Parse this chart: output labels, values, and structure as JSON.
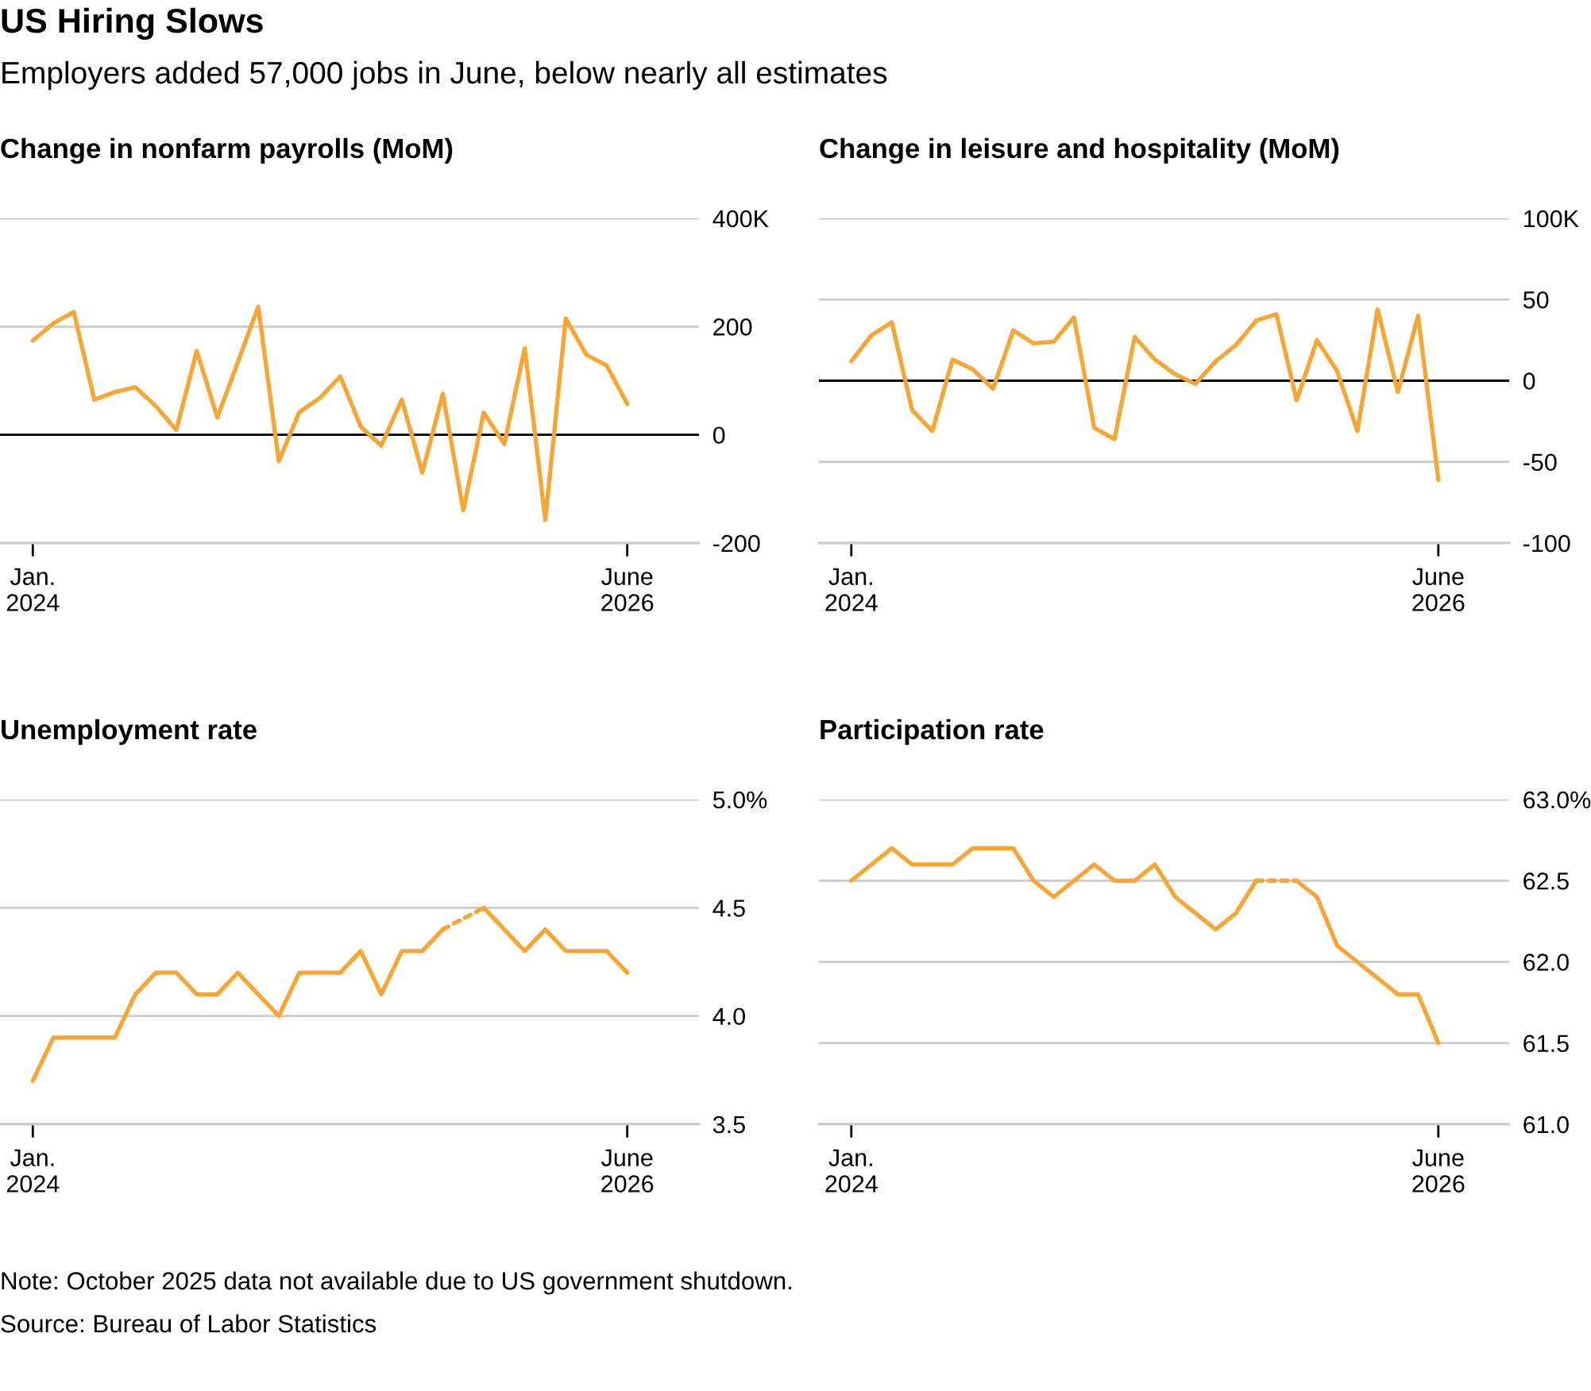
{
  "chart_data": [
    {
      "type": "line",
      "title": "Change in nonfarm payrolls (MoM)",
      "annotations": [
        "US Hiring Slows",
        "Employers added 57,000 jobs in June, below nearly all estimates",
        "Note: October 2025 data not available due to US government shutdown.",
        "Source: Bureau of Labor Statistics"
      ],
      "categories": [
        "Jan.\n2024",
        null,
        null,
        null,
        null,
        null,
        null,
        null,
        null,
        null,
        null,
        null,
        null,
        null,
        null,
        null,
        null,
        null,
        null,
        null,
        null,
        null,
        null,
        null,
        null,
        null,
        null,
        null,
        null,
        "June\n2026"
      ],
      "series": [
        {
          "color": "#f9a533",
          "values": [
            174,
            206,
            227,
            65,
            79,
            88,
            53,
            9,
            155,
            32,
            134,
            237,
            -49,
            42,
            68,
            108,
            15,
            -20,
            65,
            -70,
            76,
            -139,
            41,
            -17,
            160,
            -157,
            215,
            148,
            128,
            57
          ]
        }
      ],
      "ylim": [
        -200,
        400
      ],
      "yticks": [
        -200,
        0,
        200,
        {
          "value": 400,
          "label": "400K"
        }
      ],
      "grid": "y",
      "ref_lines": [
        {
          "axis": "y",
          "value": 0,
          "color": "#000000"
        }
      ]
    },
    {
      "type": "line",
      "title": "Change in leisure and hospitality (MoM)",
      "categories": [
        "Jan.\n2024",
        null,
        null,
        null,
        null,
        null,
        null,
        null,
        null,
        null,
        null,
        null,
        null,
        null,
        null,
        null,
        null,
        null,
        null,
        null,
        null,
        null,
        null,
        null,
        null,
        null,
        null,
        null,
        null,
        "June\n2026"
      ],
      "series": [
        {
          "color": "#f9a533",
          "values": [
            12,
            28,
            36,
            -18,
            -31,
            13,
            7,
            -5,
            31,
            23,
            24,
            39,
            -29,
            -36,
            27,
            13,
            4,
            -2,
            12,
            22,
            37,
            41,
            -12,
            25,
            6,
            -31,
            44,
            -7,
            40,
            -61
          ]
        }
      ],
      "ylim": [
        -100,
        100
      ],
      "yticks": [
        -100,
        -50,
        0,
        50,
        {
          "value": 100,
          "label": "100K"
        }
      ],
      "grid": "y",
      "ref_lines": [
        {
          "axis": "y",
          "value": 0,
          "color": "#000000"
        }
      ]
    },
    {
      "type": "line",
      "title": "Unemployment rate",
      "categories": [
        "Jan.\n2024",
        null,
        null,
        null,
        null,
        null,
        null,
        null,
        null,
        null,
        null,
        null,
        null,
        null,
        null,
        null,
        null,
        null,
        null,
        null,
        null,
        null,
        null,
        null,
        null,
        null,
        null,
        null,
        null,
        "June\n2026"
      ],
      "series": [
        {
          "color": "#f9a533",
          "values": [
            3.7,
            3.9,
            3.9,
            3.9,
            3.9,
            4.1,
            4.2,
            4.2,
            4.1,
            4.1,
            4.2,
            4.1,
            4.0,
            4.2,
            4.2,
            4.2,
            4.3,
            4.1,
            4.3,
            4.3,
            4.4,
            null,
            4.5,
            4.4,
            4.3,
            4.4,
            4.3,
            4.3,
            4.3,
            4.2
          ]
        }
      ],
      "ylim": [
        3.5,
        5.0
      ],
      "yticks": [
        {
          "value": 3.5,
          "label": "3.5"
        },
        {
          "value": 4.0,
          "label": "4.0"
        },
        {
          "value": 4.5,
          "label": "4.5"
        },
        {
          "value": 5.0,
          "label": "5.0%"
        }
      ],
      "grid": "y"
    },
    {
      "type": "line",
      "title": "Participation rate",
      "categories": [
        "Jan.\n2024",
        null,
        null,
        null,
        null,
        null,
        null,
        null,
        null,
        null,
        null,
        null,
        null,
        null,
        null,
        null,
        null,
        null,
        null,
        null,
        null,
        null,
        null,
        null,
        null,
        null,
        null,
        null,
        null,
        "June\n2026"
      ],
      "series": [
        {
          "color": "#f9a533",
          "values": [
            62.5,
            62.6,
            62.7,
            62.6,
            62.6,
            62.6,
            62.7,
            62.7,
            62.7,
            62.5,
            62.4,
            62.5,
            62.6,
            62.5,
            62.5,
            62.6,
            62.4,
            62.3,
            62.2,
            62.3,
            62.5,
            null,
            62.5,
            62.4,
            62.1,
            62.0,
            61.9,
            61.8,
            61.8,
            61.5
          ]
        }
      ],
      "ylim": [
        61.0,
        63.0
      ],
      "yticks": [
        {
          "value": 61.0,
          "label": "61.0"
        },
        {
          "value": 61.5,
          "label": "61.5"
        },
        {
          "value": 62.0,
          "label": "62.0"
        },
        {
          "value": 62.5,
          "label": "62.5"
        },
        {
          "value": 63.0,
          "label": "63.0%"
        }
      ],
      "grid": "y"
    }
  ]
}
